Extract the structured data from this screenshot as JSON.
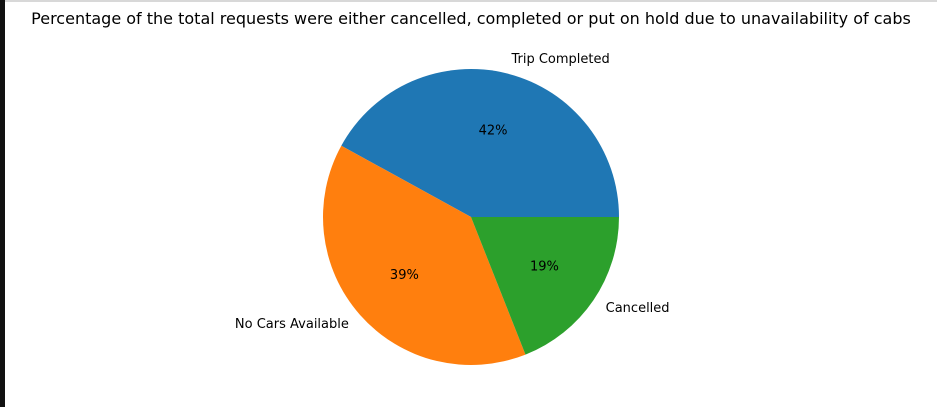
{
  "chart_data": {
    "type": "pie",
    "title": "Percentage of the total requests were either cancelled, completed or put on hold due to unavailability of cabs",
    "labels": [
      "Trip Completed",
      "No Cars Available",
      "Cancelled"
    ],
    "values": [
      42,
      39,
      19
    ],
    "value_labels": [
      "42%",
      "39%",
      "19%"
    ],
    "colors": [
      "#1f77b4",
      "#ff7f0e",
      "#2ca02c"
    ],
    "start_angle": 0,
    "direction": "counterclockwise",
    "legend": "none"
  }
}
